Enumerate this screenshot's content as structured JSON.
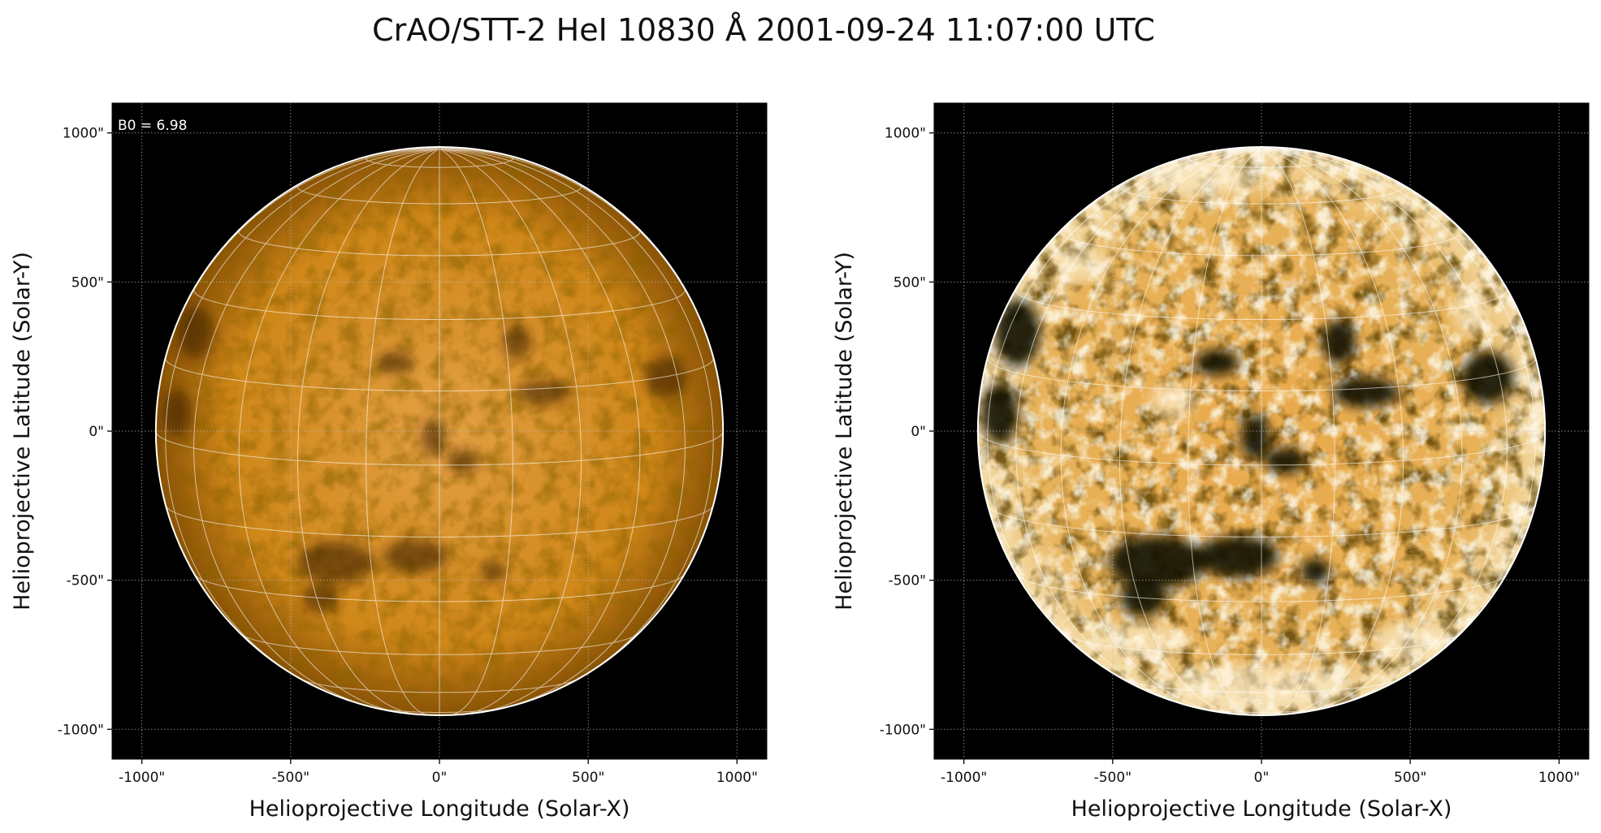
{
  "title": "CrAO/STT-2 HeI 10830 Å 2001-09-24 11:07:00 UTC",
  "chart_data": [
    {
      "type": "solar-map",
      "xlabel": "Helioprojective Longitude (Solar-X)",
      "ylabel": "Helioprojective Latitude (Solar-Y)",
      "annotation": "B0 = 6.98",
      "xlim": [
        -1100,
        1100
      ],
      "ylim": [
        -1100,
        1100
      ],
      "xticks": [
        {
          "value": -1000,
          "label": "-1000\""
        },
        {
          "value": -500,
          "label": "-500\""
        },
        {
          "value": 0,
          "label": "0\""
        },
        {
          "value": 500,
          "label": "500\""
        },
        {
          "value": 1000,
          "label": "1000\""
        }
      ],
      "yticks": [
        {
          "value": -1000,
          "label": "-1000\""
        },
        {
          "value": -500,
          "label": "-500\""
        },
        {
          "value": 0,
          "label": "0\""
        },
        {
          "value": 500,
          "label": "500\""
        },
        {
          "value": 1000,
          "label": "1000\""
        }
      ],
      "rsun": 953,
      "grid": true
    },
    {
      "type": "solar-map",
      "xlabel": "Helioprojective Longitude (Solar-X)",
      "ylabel": "Helioprojective Latitude (Solar-Y)",
      "xlim": [
        -1100,
        1100
      ],
      "ylim": [
        -1100,
        1100
      ],
      "xticks": [
        {
          "value": -1000,
          "label": "-1000\""
        },
        {
          "value": -500,
          "label": "-500\""
        },
        {
          "value": 0,
          "label": "0\""
        },
        {
          "value": 500,
          "label": "500\""
        },
        {
          "value": 1000,
          "label": "1000\""
        }
      ],
      "yticks": [
        {
          "value": -1000,
          "label": "-1000\""
        },
        {
          "value": -500,
          "label": "-500\""
        },
        {
          "value": 0,
          "label": "0\""
        },
        {
          "value": 500,
          "label": "500\""
        },
        {
          "value": 1000,
          "label": "1000\""
        }
      ],
      "rsun": 953,
      "grid": true
    }
  ]
}
